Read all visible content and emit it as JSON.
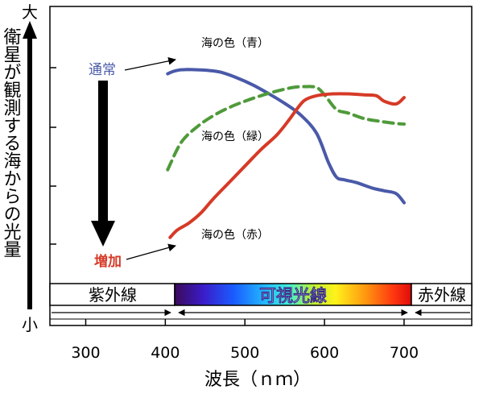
{
  "chart_data": {
    "type": "line",
    "xlabel": "波長（ｎｍ）",
    "ylabel": "衛星が観測する海からの光量",
    "y_high_label": "大",
    "y_low_label": "小",
    "xlim": [
      255,
      785
    ],
    "ylim": [
      0,
      100
    ],
    "x_ticks": [
      300,
      400,
      500,
      600,
      700
    ],
    "x_tick_labels": [
      "300",
      "400",
      "500",
      "600",
      "700"
    ],
    "y_tick_values": [
      20,
      40,
      60,
      80
    ],
    "series": [
      {
        "name": "海の色（青）",
        "color": "#4a59a8",
        "dashed": false,
        "x": [
          403,
          410,
          418,
          428,
          440,
          455,
          470,
          490,
          510,
          530,
          550,
          570,
          590,
          605,
          615,
          625,
          640,
          660,
          675,
          690,
          700
        ],
        "y": [
          90.5,
          91.8,
          92.6,
          92.8,
          92.7,
          92.3,
          91.3,
          88.3,
          84.4,
          79.6,
          74.3,
          68.0,
          58.0,
          42.0,
          34.0,
          32.5,
          31.0,
          28.0,
          26.5,
          25.0,
          20.0
        ]
      },
      {
        "name": "海の色（緑）",
        "color": "#4f9a3a",
        "dashed": true,
        "x": [
          403,
          420,
          440,
          460,
          480,
          500,
          520,
          540,
          560,
          575,
          590,
          600,
          615,
          630,
          650,
          670,
          690,
          700
        ],
        "y": [
          38,
          53,
          61.5,
          67.5,
          72,
          75.5,
          78.5,
          81,
          83,
          83.5,
          83,
          79,
          71,
          69,
          66,
          64.5,
          63.3,
          63
        ]
      },
      {
        "name": "海の色（赤）",
        "color": "#d63a27",
        "dashed": false,
        "x": [
          406,
          415,
          430,
          445,
          460,
          480,
          500,
          520,
          540,
          555,
          565,
          575,
          590,
          610,
          630,
          650,
          665,
          675,
          690,
          700
        ],
        "y": [
          1,
          5,
          9,
          14.5,
          22,
          31,
          40,
          49,
          57,
          65,
          71,
          76,
          78.5,
          79.5,
          79.5,
          79,
          78.5,
          75.5,
          74,
          77.5
        ]
      }
    ],
    "annotations": {
      "normal": "通常",
      "increase": "増加"
    },
    "spectrum_bar": {
      "uv": "紫外線",
      "visible": "可視光線",
      "ir": "赤外線"
    }
  }
}
